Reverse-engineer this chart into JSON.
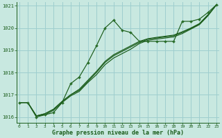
{
  "title": "Graphe pression niveau de la mer (hPa)",
  "bg_color": "#c8e8e0",
  "grid_color": "#9ecece",
  "line_color": "#1a5c1a",
  "marker_color": "#2a6e2a",
  "xlim": [
    -0.3,
    23.3
  ],
  "ylim": [
    1015.75,
    1021.15
  ],
  "yticks": [
    1016,
    1017,
    1018,
    1019,
    1020,
    1021
  ],
  "xticks": [
    0,
    1,
    2,
    3,
    4,
    5,
    6,
    7,
    8,
    9,
    10,
    11,
    12,
    13,
    14,
    15,
    16,
    17,
    18,
    19,
    20,
    21,
    22,
    23
  ],
  "series1_x": [
    0,
    1,
    2,
    3,
    4,
    5,
    6,
    7,
    8,
    9,
    10,
    11,
    12,
    13,
    14,
    15,
    16,
    17,
    18,
    19,
    20,
    21,
    22,
    23
  ],
  "series1_y": [
    1016.65,
    1016.65,
    1016.0,
    1016.1,
    1016.2,
    1016.65,
    1017.5,
    1017.8,
    1018.45,
    1019.2,
    1020.0,
    1020.35,
    1019.9,
    1019.8,
    1019.4,
    1019.4,
    1019.4,
    1019.4,
    1019.4,
    1020.3,
    1020.3,
    1020.4,
    1020.7,
    1021.05
  ],
  "series2_x": [
    0,
    1,
    2,
    3,
    4,
    5,
    6,
    7,
    8,
    9,
    10,
    11,
    12,
    13,
    14,
    15,
    16,
    17,
    18,
    19,
    20,
    21,
    22,
    23
  ],
  "series2_y": [
    1016.65,
    1016.65,
    1016.05,
    1016.1,
    1016.3,
    1016.65,
    1016.95,
    1017.15,
    1017.55,
    1017.9,
    1018.35,
    1018.65,
    1018.85,
    1019.05,
    1019.3,
    1019.45,
    1019.5,
    1019.55,
    1019.6,
    1019.75,
    1019.95,
    1020.15,
    1020.55,
    1021.05
  ],
  "series3_x": [
    0,
    1,
    2,
    3,
    4,
    5,
    6,
    7,
    8,
    9,
    10,
    11,
    12,
    13,
    14,
    15,
    16,
    17,
    18,
    19,
    20,
    21,
    22,
    23
  ],
  "series3_y": [
    1016.65,
    1016.65,
    1016.05,
    1016.15,
    1016.35,
    1016.7,
    1017.0,
    1017.2,
    1017.6,
    1018.0,
    1018.45,
    1018.75,
    1018.95,
    1019.15,
    1019.35,
    1019.5,
    1019.55,
    1019.6,
    1019.65,
    1019.8,
    1019.98,
    1020.18,
    1020.58,
    1021.05
  ],
  "series4_x": [
    0,
    1,
    2,
    3,
    4,
    5,
    6,
    7,
    8,
    9,
    10,
    11,
    12,
    13,
    14,
    15,
    16,
    17,
    18,
    19,
    20,
    21,
    22,
    23
  ],
  "series4_y": [
    1016.65,
    1016.65,
    1016.05,
    1016.15,
    1016.35,
    1016.7,
    1017.0,
    1017.25,
    1017.65,
    1018.05,
    1018.5,
    1018.8,
    1019.0,
    1019.2,
    1019.4,
    1019.52,
    1019.58,
    1019.63,
    1019.68,
    1019.83,
    1020.0,
    1020.2,
    1020.6,
    1021.05
  ]
}
